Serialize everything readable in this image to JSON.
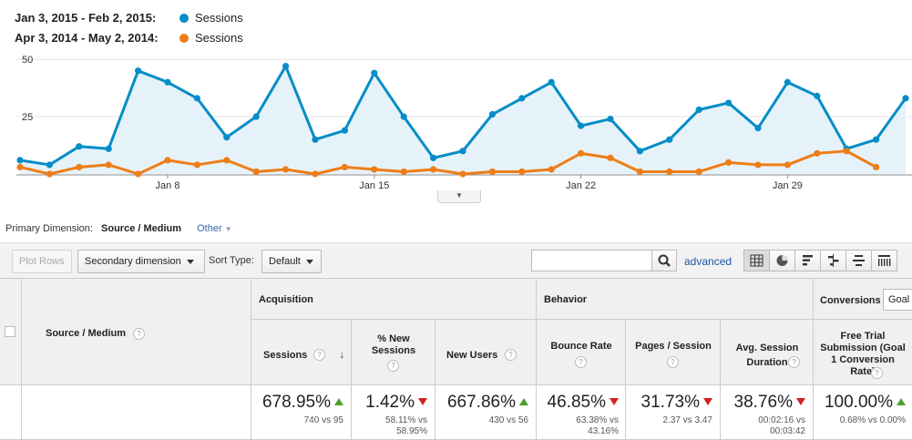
{
  "legend": {
    "range_current": "Jan 3, 2015 - Feb 2, 2015:",
    "range_previous": "Apr 3, 2014 - May 2, 2014:",
    "metric_current": "Sessions",
    "metric_previous": "Sessions"
  },
  "chart_data": {
    "type": "line",
    "y_ticks": [
      50,
      25
    ],
    "ylim": [
      0,
      54
    ],
    "x_tick_labels": [
      "Jan 8",
      "Jan 15",
      "Jan 22",
      "Jan 29"
    ],
    "x_tick_index": [
      5,
      12,
      19,
      26
    ],
    "grid": true,
    "series": [
      {
        "name": "Sessions",
        "color": "#058dc7",
        "values": [
          6,
          4,
          12,
          11,
          45,
          40,
          33,
          16,
          25,
          47,
          15,
          19,
          44,
          25,
          7,
          10,
          26,
          33,
          40,
          21,
          24,
          10,
          15,
          28,
          31,
          20,
          40,
          34,
          11,
          15,
          33
        ]
      },
      {
        "name": "Sessions",
        "color": "#ed7e17",
        "values": [
          3,
          0,
          3,
          4,
          0,
          6,
          4,
          6,
          1,
          2,
          0,
          3,
          2,
          1,
          2,
          0,
          1,
          1,
          2,
          9,
          7,
          1,
          1,
          1,
          5,
          4,
          4,
          9,
          10,
          3
        ]
      }
    ]
  },
  "primary_dimension": {
    "label": "Primary Dimension:",
    "value": "Source / Medium",
    "other": "Other"
  },
  "toolbar": {
    "plot_rows": "Plot Rows",
    "secondary_dimension": "Secondary dimension",
    "sort_type_label": "Sort Type:",
    "sort_type_value": "Default",
    "search_value": "",
    "advanced": "advanced"
  },
  "table": {
    "dim_header": "Source / Medium",
    "group_acquisition": "Acquisition",
    "group_behavior": "Behavior",
    "group_conversions": "Conversions",
    "goal_select": "Goal",
    "columns": [
      {
        "label": "Sessions",
        "total": "678.95%",
        "compare": "740 vs 95",
        "trend": "up"
      },
      {
        "label": "% New Sessions",
        "total": "1.42%",
        "compare": "58.11% vs 58.95%",
        "trend": "down"
      },
      {
        "label": "New Users",
        "total": "667.86%",
        "compare": "430 vs 56",
        "trend": "up"
      },
      {
        "label": "Bounce Rate",
        "total": "46.85%",
        "compare": "63.38% vs 43.16%",
        "trend": "down"
      },
      {
        "label": "Pages / Session",
        "total": "31.73%",
        "compare": "2.37 vs 3.47",
        "trend": "down"
      },
      {
        "label": "Avg. Session Duration",
        "total": "38.76%",
        "compare": "00:02:16 vs 00:03:42",
        "trend": "down"
      },
      {
        "label": "Free Trial Submission (Goal 1 Conversion Rate)",
        "total": "100.00%",
        "compare": "0.68% vs 0.00%",
        "trend": "up"
      }
    ]
  },
  "colors": {
    "accent": "#058dc7",
    "previous": "#ed7e17",
    "up": "#4aa02c",
    "down": "#d42020"
  }
}
